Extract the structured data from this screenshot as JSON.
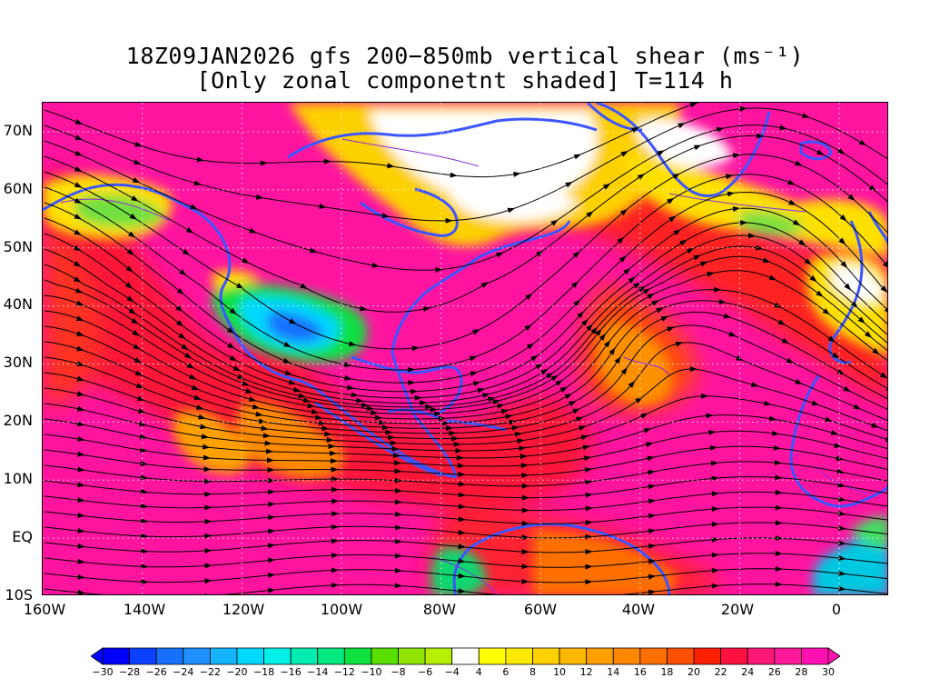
{
  "header": {
    "title_line1": "18Z09JAN2026 gfs 200−850mb vertical shear (ms⁻¹)",
    "title_line2": "[Only zonal componetnt shaded] T=114 h"
  },
  "axes": {
    "lat_labels": [
      "70N",
      "60N",
      "50N",
      "40N",
      "30N",
      "20N",
      "10N",
      "EQ",
      "10S"
    ],
    "lon_labels": [
      "160W",
      "140W",
      "120W",
      "100W",
      "80W",
      "60W",
      "40W",
      "20W",
      "0"
    ]
  },
  "map": {
    "projection": "cylindrical equidistant",
    "lon_range": [
      -160,
      10
    ],
    "lat_range": [
      -10,
      75
    ],
    "overlays": [
      "coastlines",
      "country borders",
      "streamlines",
      "dotted lat/lon grid"
    ],
    "coastline_color": "#3c55ff",
    "streamline_color": "#000000",
    "contour_color": "#8a2be2",
    "grid_color": "#ffffff"
  },
  "colorbar": {
    "labels": [
      "−30",
      "−28",
      "−26",
      "−24",
      "−22",
      "−20",
      "−18",
      "−16",
      "−14",
      "−12",
      "−10",
      "−8",
      "−6",
      "−4",
      "4",
      "6",
      "8",
      "10",
      "12",
      "14",
      "16",
      "18",
      "20",
      "22",
      "24",
      "26",
      "28",
      "30"
    ],
    "colors": [
      "#0000ff",
      "#0a40ff",
      "#1870ff",
      "#1f90ff",
      "#14b4ff",
      "#00d8ff",
      "#00f0e8",
      "#00ecb0",
      "#00e880",
      "#10e040",
      "#5ae000",
      "#90e600",
      "#b8ee00",
      "#ffffff",
      "#ffff00",
      "#fde800",
      "#fdd000",
      "#fdb800",
      "#fda000",
      "#fd8800",
      "#fd7000",
      "#fd5000",
      "#fd2000",
      "#fe1040",
      "#ff1878",
      "#ff1898",
      "#ff10b0"
    ]
  }
}
